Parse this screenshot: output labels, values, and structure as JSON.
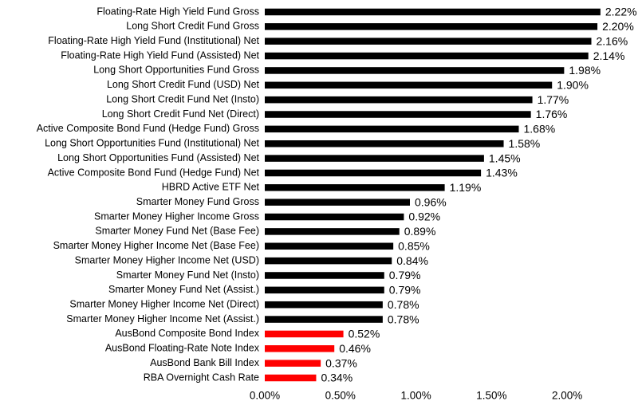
{
  "chart_data": {
    "type": "bar",
    "orientation": "horizontal",
    "categories": [
      "Floating-Rate High Yield Fund Gross",
      "Long Short Credit Fund Gross",
      "Floating-Rate High Yield Fund (Institutional) Net",
      "Floating-Rate High Yield Fund (Assisted) Net",
      "Long Short Opportunities Fund Gross",
      "Long Short Credit Fund (USD) Net",
      "Long Short Credit Fund Net (Insto)",
      "Long Short Credit Fund Net (Direct)",
      "Active Composite Bond Fund (Hedge Fund) Gross",
      "Long Short Opportunities Fund (Institutional) Net",
      "Long Short Opportunities Fund (Assisted) Net",
      "Active Composite Bond Fund (Hedge Fund) Net",
      "HBRD Active ETF Net",
      "Smarter Money Fund Gross",
      "Smarter Money Higher Income Gross",
      "Smarter Money Fund Net (Base Fee)",
      "Smarter Money Higher Income Net (Base Fee)",
      "Smarter Money Higher Income Net (USD)",
      "Smarter Money Fund Net (Insto)",
      "Smarter Money Fund Net (Assist.)",
      "Smarter Money Higher Income Net (Direct)",
      "Smarter Money Higher Income Net (Assist.)",
      "AusBond Composite Bond Index",
      "AusBond Floating-Rate Note Index",
      "AusBond Bank Bill Index",
      "RBA Overnight Cash Rate"
    ],
    "values": [
      2.22,
      2.2,
      2.16,
      2.14,
      1.98,
      1.9,
      1.77,
      1.76,
      1.68,
      1.58,
      1.45,
      1.43,
      1.19,
      0.96,
      0.92,
      0.89,
      0.85,
      0.84,
      0.79,
      0.79,
      0.78,
      0.78,
      0.52,
      0.46,
      0.37,
      0.34
    ],
    "value_labels": [
      "2.22%",
      "2.20%",
      "2.16%",
      "2.14%",
      "1.98%",
      "1.90%",
      "1.77%",
      "1.76%",
      "1.68%",
      "1.58%",
      "1.45%",
      "1.43%",
      "1.19%",
      "0.96%",
      "0.92%",
      "0.89%",
      "0.85%",
      "0.84%",
      "0.79%",
      "0.79%",
      "0.78%",
      "0.78%",
      "0.52%",
      "0.46%",
      "0.37%",
      "0.34%"
    ],
    "colors": [
      "#000000",
      "#000000",
      "#000000",
      "#000000",
      "#000000",
      "#000000",
      "#000000",
      "#000000",
      "#000000",
      "#000000",
      "#000000",
      "#000000",
      "#000000",
      "#000000",
      "#000000",
      "#000000",
      "#000000",
      "#000000",
      "#000000",
      "#000000",
      "#000000",
      "#000000",
      "#ff0000",
      "#ff0000",
      "#ff0000",
      "#ff0000"
    ],
    "xlim": [
      0,
      2.4
    ],
    "xticks": [
      {
        "value": 0,
        "label": "0.00%"
      },
      {
        "value": 0.5,
        "label": "0.50%"
      },
      {
        "value": 1,
        "label": "1.00%"
      },
      {
        "value": 1.5,
        "label": "1.50%"
      },
      {
        "value": 2,
        "label": "2.00%"
      }
    ],
    "grid": false
  }
}
